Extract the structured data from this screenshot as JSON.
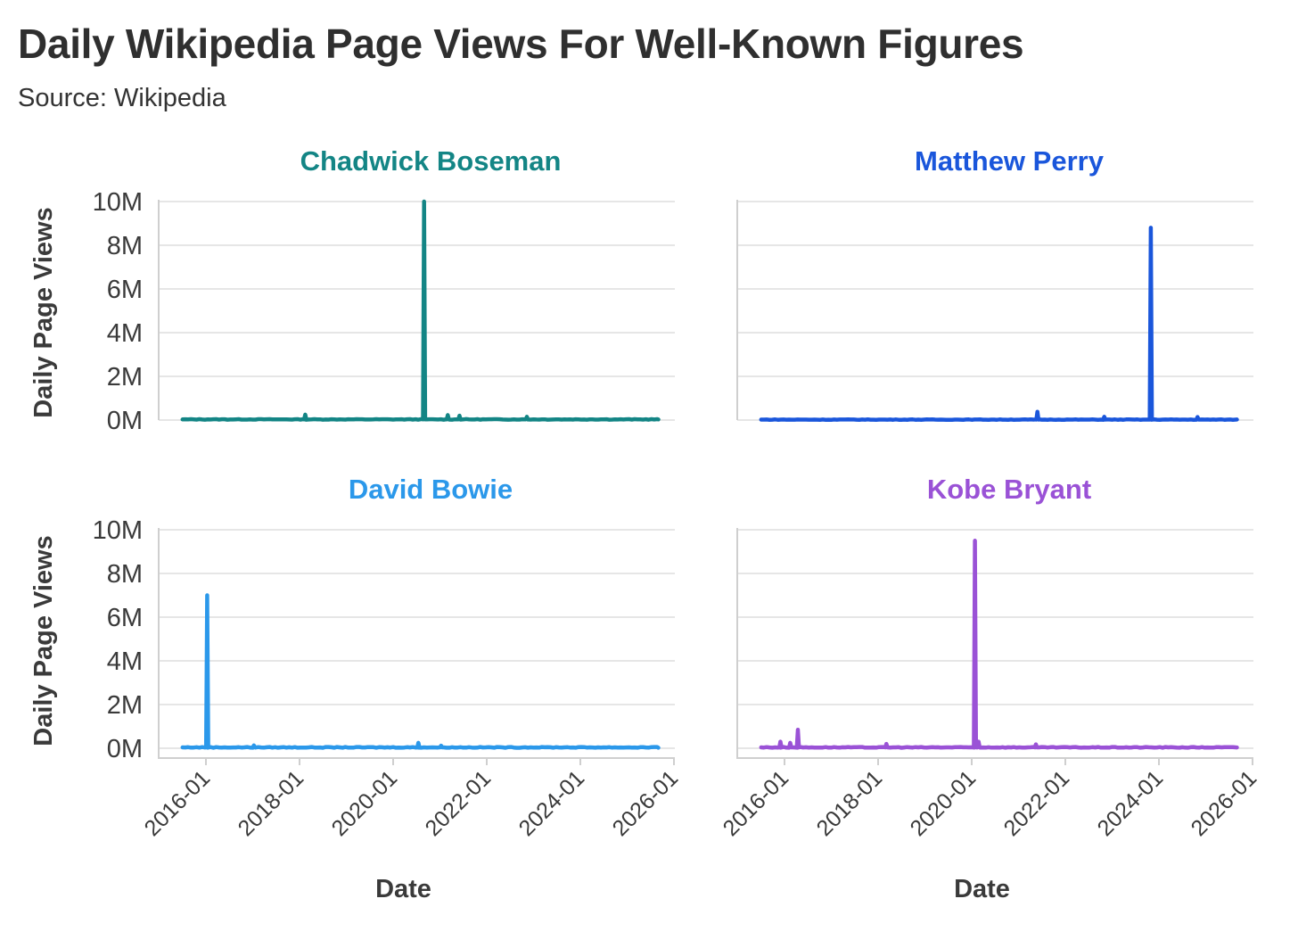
{
  "title": "Daily Wikipedia Page Views For Well-Known Figures",
  "subtitle": "Source: Wikipedia",
  "chart_data": [
    {
      "type": "line",
      "title": "Chadwick Boseman",
      "color": "#138585",
      "xlabel": "",
      "ylabel": "Daily Page Views",
      "xlim": [
        "2015-07",
        "2025-09"
      ],
      "ylim": [
        0,
        10000000
      ],
      "yticks": [
        "0M",
        "2M",
        "4M",
        "6M",
        "8M",
        "10M"
      ],
      "xticks": [],
      "baseline": 30000,
      "spikes": [
        {
          "date": "2018-02-15",
          "value": 250000
        },
        {
          "date": "2020-08-29",
          "value": 10000000
        },
        {
          "date": "2021-03-01",
          "value": 230000
        },
        {
          "date": "2021-06-01",
          "value": 200000
        },
        {
          "date": "2022-11-10",
          "value": 150000
        }
      ]
    },
    {
      "type": "line",
      "title": "Matthew Perry",
      "color": "#1a56db",
      "xlabel": "",
      "ylabel": "",
      "xlim": [
        "2015-07",
        "2025-09"
      ],
      "ylim": [
        0,
        10000000
      ],
      "yticks": [],
      "xticks": [],
      "baseline": 20000,
      "spikes": [
        {
          "date": "2021-05-27",
          "value": 380000
        },
        {
          "date": "2022-11-01",
          "value": 150000
        },
        {
          "date": "2023-10-29",
          "value": 8800000
        },
        {
          "date": "2024-10-28",
          "value": 140000
        }
      ]
    },
    {
      "type": "line",
      "title": "David Bowie",
      "color": "#2b98ea",
      "xlabel": "",
      "ylabel": "Daily Page Views",
      "xlim": [
        "2015-07",
        "2025-09"
      ],
      "ylim": [
        0,
        10000000
      ],
      "yticks": [
        "0M",
        "2M",
        "4M",
        "6M",
        "8M",
        "10M"
      ],
      "xticks": [
        "2016-01",
        "2018-01",
        "2020-01",
        "2022-01",
        "2024-01",
        "2026-01"
      ],
      "baseline": 40000,
      "spikes": [
        {
          "date": "2016-01-11",
          "value": 7000000
        },
        {
          "date": "2017-01-10",
          "value": 130000
        },
        {
          "date": "2020-07-15",
          "value": 250000
        },
        {
          "date": "2021-01-10",
          "value": 120000
        }
      ]
    },
    {
      "type": "line",
      "title": "Kobe Bryant",
      "color": "#9a52d6",
      "xlabel": "Date",
      "ylabel": "",
      "xlim": [
        "2015-07",
        "2025-09"
      ],
      "ylim": [
        0,
        10000000
      ],
      "yticks": [],
      "xticks": [
        "2016-01",
        "2018-01",
        "2020-01",
        "2022-01",
        "2024-01",
        "2026-01"
      ],
      "baseline": 40000,
      "spikes": [
        {
          "date": "2015-11-30",
          "value": 300000
        },
        {
          "date": "2016-02-15",
          "value": 250000
        },
        {
          "date": "2016-04-14",
          "value": 850000
        },
        {
          "date": "2018-03-05",
          "value": 200000
        },
        {
          "date": "2020-01-26",
          "value": 9500000
        },
        {
          "date": "2020-02-24",
          "value": 300000
        },
        {
          "date": "2021-05-15",
          "value": 180000
        }
      ]
    }
  ],
  "x_axis_title": "Date"
}
